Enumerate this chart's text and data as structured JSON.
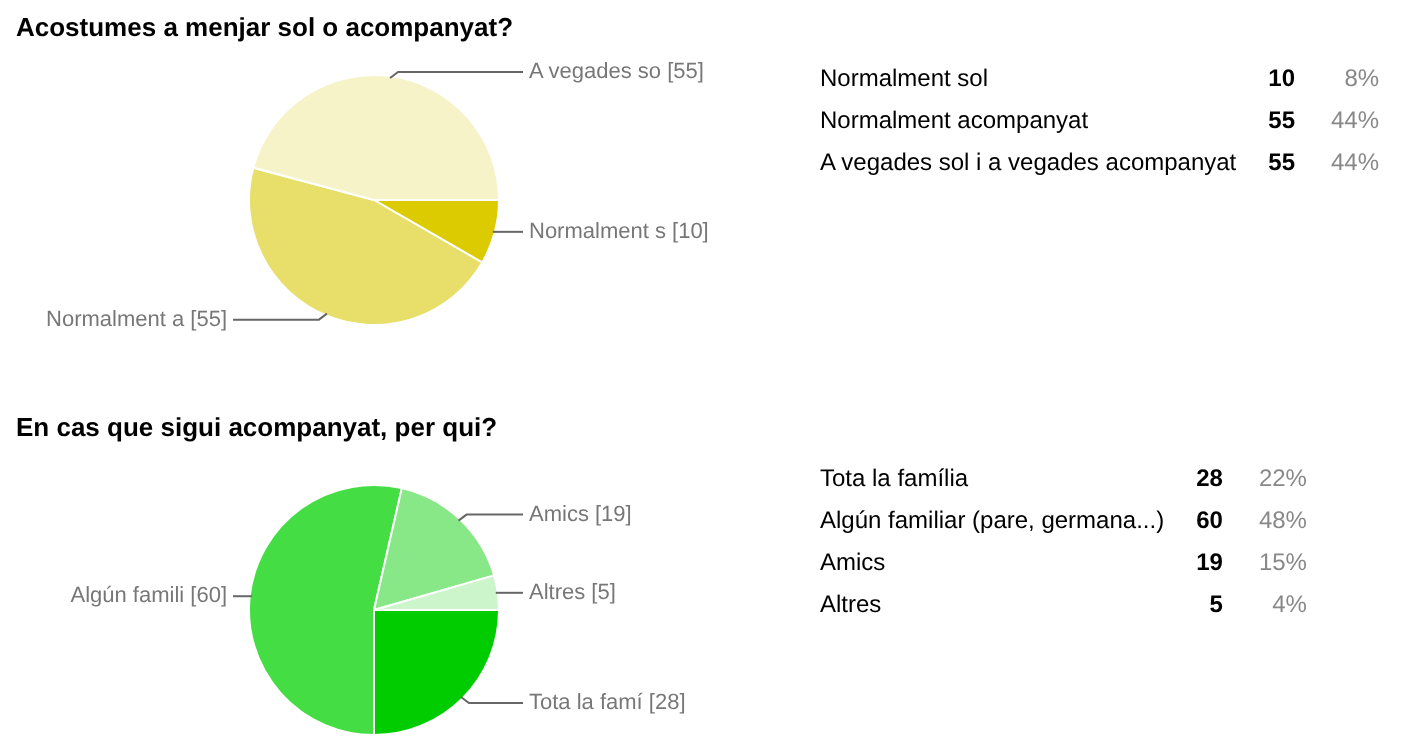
{
  "chart_data": [
    {
      "type": "pie",
      "title": "Acostumes a menjar sol o acompanyat?",
      "categories": [
        "Normalment s",
        "Normalment a",
        "A vegades so"
      ],
      "values": [
        10,
        55,
        55
      ],
      "colors": [
        "#dccb00",
        "#e8df6a",
        "#f6f3c8"
      ],
      "value_labels": [
        "[10]",
        "[55]",
        "[55]"
      ],
      "legend": false
    },
    {
      "type": "other",
      "annotations": [
        "Normalment sol",
        "10",
        "8%",
        "Normalment acompanyat",
        "55",
        "44%",
        "A vegades sol i a vegades acompanyat",
        "55",
        "44%"
      ]
    },
    {
      "type": "pie",
      "title": "En cas que sigui acompanyat, per qui?",
      "categories": [
        "Tota la famí",
        "Algún famili",
        "Amics",
        "Altres"
      ],
      "values": [
        28,
        60,
        19,
        5
      ],
      "colors": [
        "#00cc00",
        "#44dd44",
        "#88e888",
        "#ccf5cc"
      ],
      "value_labels": [
        "[28]",
        "[60]",
        "[19]",
        "[5]"
      ],
      "legend": false
    },
    {
      "type": "other",
      "annotations": [
        "Tota la família",
        "28",
        "22%",
        "Algún familiar (pare, germana...)",
        "60",
        "48%",
        "Amics",
        "19",
        "15%",
        "Altres",
        "5",
        "4%"
      ]
    }
  ]
}
